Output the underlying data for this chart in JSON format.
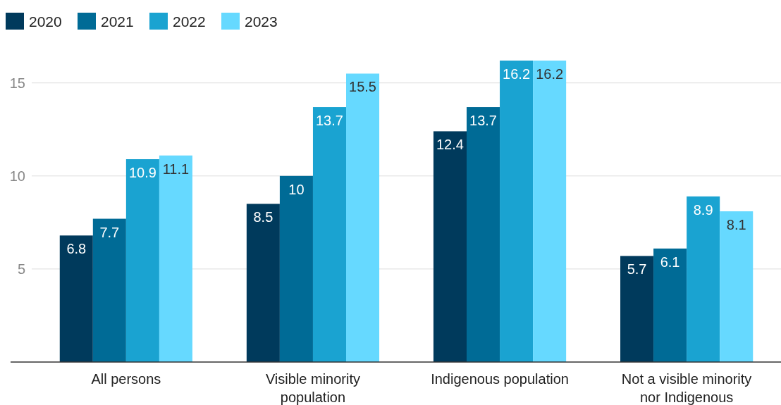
{
  "chart_data": {
    "type": "bar",
    "categories": [
      "All persons",
      "Visible minority population",
      "Indigenous population",
      "Not a visible minority nor Indigenous"
    ],
    "series": [
      {
        "name": "2020",
        "color": "#003a5c",
        "values": [
          6.8,
          8.5,
          12.4,
          5.7
        ]
      },
      {
        "name": "2021",
        "color": "#006b96",
        "values": [
          7.7,
          10,
          13.7,
          6.1
        ]
      },
      {
        "name": "2022",
        "color": "#1aa3d1",
        "values": [
          10.9,
          13.7,
          16.2,
          8.9
        ]
      },
      {
        "name": "2023",
        "color": "#66d9ff",
        "values": [
          11.1,
          15.5,
          16.2,
          8.1
        ]
      }
    ],
    "ylim": [
      0,
      16.2
    ],
    "yticks": [
      5,
      10,
      15
    ],
    "grid": "y",
    "legend": "top left",
    "data_labels": true
  }
}
